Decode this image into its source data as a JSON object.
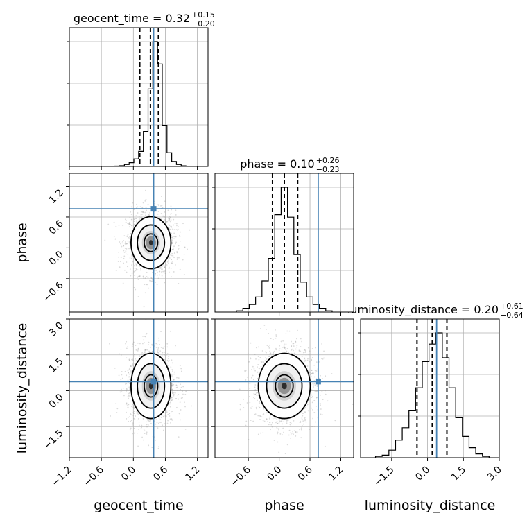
{
  "chart_data": {
    "type": "corner",
    "parameters": [
      "geocent_time",
      "phase",
      "luminosity_distance"
    ],
    "truths": {
      "geocent_time": 0.38,
      "phase": 0.76,
      "luminosity_distance": 0.38
    },
    "titles": [
      {
        "param": "geocent_time",
        "text": "geocent_time = 0.32",
        "plus": "+0.15",
        "minus": "−0.20"
      },
      {
        "param": "phase",
        "text": "phase = 0.10",
        "plus": "+0.26",
        "minus": "−0.23"
      },
      {
        "param": "luminosity_distance",
        "text": "luminosity_distance = 0.20",
        "plus": "+0.61",
        "minus": "−0.64"
      }
    ],
    "ranges": {
      "geocent_time": [
        -1.2,
        1.4
      ],
      "phase": [
        -1.25,
        1.45
      ],
      "luminosity_distance": [
        -2.8,
        3.0
      ]
    },
    "ticks": {
      "geocent_time": [
        -1.2,
        -0.6,
        0.0,
        0.6,
        1.2
      ],
      "phase": [
        -0.6,
        0.0,
        0.6,
        1.2
      ],
      "luminosity_distance": [
        -1.5,
        0.0,
        1.5,
        3.0
      ]
    },
    "tick_labels": {
      "geocent_time": [
        "−1.2",
        "−0.6",
        "0.0",
        "0.6",
        "1.2"
      ],
      "phase": [
        "−0.6",
        "0.0",
        "0.6",
        "1.2"
      ],
      "luminosity_distance": [
        "−1.5",
        "0.0",
        "1.5",
        "3.0"
      ]
    },
    "quantiles": {
      "geocent_time": [
        0.12,
        0.32,
        0.47
      ],
      "phase": [
        -0.13,
        0.1,
        0.36
      ],
      "luminosity_distance": [
        -0.44,
        0.2,
        0.81
      ]
    },
    "histograms": {
      "geocent_time": [
        0.003,
        0.006,
        0.015,
        0.03,
        0.06,
        0.12,
        0.28,
        0.62,
        1.0,
        0.82,
        0.33,
        0.11,
        0.04,
        0.015,
        0.005
      ],
      "phase": [
        0.01,
        0.03,
        0.06,
        0.12,
        0.25,
        0.43,
        0.78,
        1.0,
        0.76,
        0.46,
        0.24,
        0.12,
        0.06,
        0.03,
        0.01
      ],
      "luminosity_distance": [
        0.01,
        0.02,
        0.06,
        0.14,
        0.24,
        0.38,
        0.56,
        0.77,
        0.91,
        1.0,
        0.8,
        0.56,
        0.32,
        0.17,
        0.08,
        0.03,
        0.01
      ]
    },
    "posterior_2d": {
      "phase_vs_geocent_time": {
        "mean": [
          0.33,
          0.1
        ],
        "sigma": [
          0.17,
          0.23
        ]
      },
      "luminosity_distance_vs_geocent_time": {
        "mean": [
          0.33,
          0.2
        ],
        "sigma": [
          0.17,
          0.62
        ]
      },
      "luminosity_distance_vs_phase": {
        "mean": [
          0.1,
          0.2
        ],
        "sigma": [
          0.23,
          0.62
        ]
      }
    },
    "grid": true
  }
}
